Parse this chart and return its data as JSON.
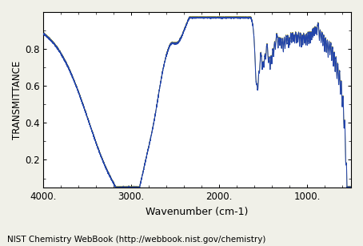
{
  "xlabel": "Wavenumber (cm-1)",
  "ylabel": "TRANSMITTANCE",
  "footnote": "NIST Chemistry WebBook (http://webbook.nist.gov/chemistry)",
  "xlim_left": 4000,
  "xlim_right": 500,
  "ylim": [
    0.05,
    1.0
  ],
  "yticks": [
    0.2,
    0.4,
    0.6,
    0.8
  ],
  "xticks": [
    4000,
    3000,
    2000,
    1000
  ],
  "line_color": "#2244aa",
  "olive_color": "#6b6b00",
  "background_color": "#f0f0e8",
  "plot_bg": "#ffffff"
}
